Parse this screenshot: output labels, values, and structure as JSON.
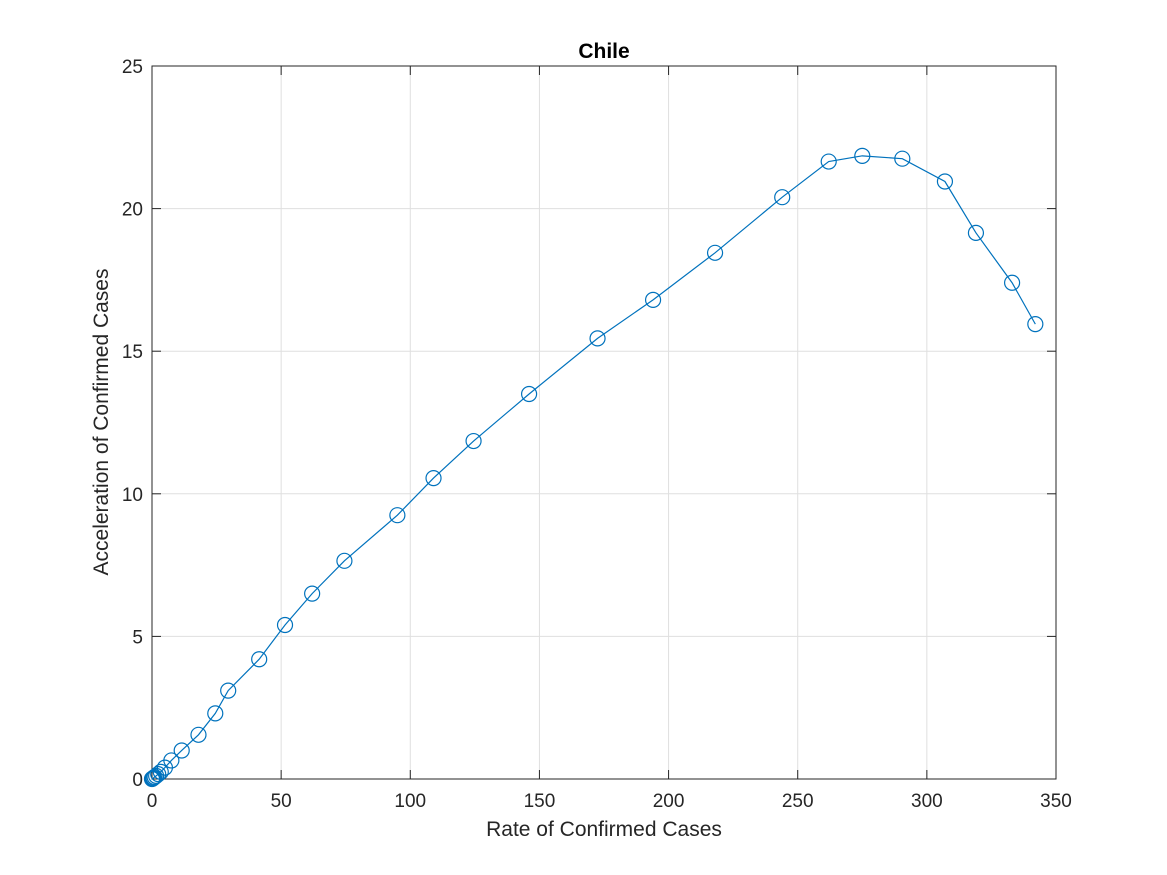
{
  "chart_data": {
    "type": "line",
    "title": "Chile",
    "xlabel": "Rate of Confirmed Cases",
    "ylabel": "Acceleration of Confirmed Cases",
    "xlim": [
      0,
      350
    ],
    "ylim": [
      0,
      25
    ],
    "xticks": [
      0,
      50,
      100,
      150,
      200,
      250,
      300,
      350
    ],
    "yticks": [
      0,
      5,
      10,
      15,
      20,
      25
    ],
    "grid": true,
    "marker": "circle",
    "series": [
      {
        "color": "#0072BD",
        "x": [
          0,
          0.1,
          0.3,
          0.6,
          1,
          1.6,
          2.4,
          3.4,
          5,
          7.5,
          11.5,
          18,
          24.5,
          29.5,
          41.5,
          51.5,
          62,
          74.5,
          95,
          109,
          124.5,
          146,
          172.5,
          194,
          218,
          244,
          262,
          275,
          290.5,
          307,
          319,
          333,
          342
        ],
        "y": [
          0,
          0.01,
          0.02,
          0.04,
          0.07,
          0.11,
          0.17,
          0.25,
          0.4,
          0.65,
          1.0,
          1.55,
          2.3,
          3.1,
          4.2,
          5.4,
          6.5,
          7.65,
          9.25,
          10.55,
          11.85,
          13.5,
          15.45,
          16.8,
          18.45,
          20.4,
          21.65,
          21.85,
          21.75,
          20.95,
          19.15,
          17.4,
          15.95
        ]
      }
    ]
  }
}
